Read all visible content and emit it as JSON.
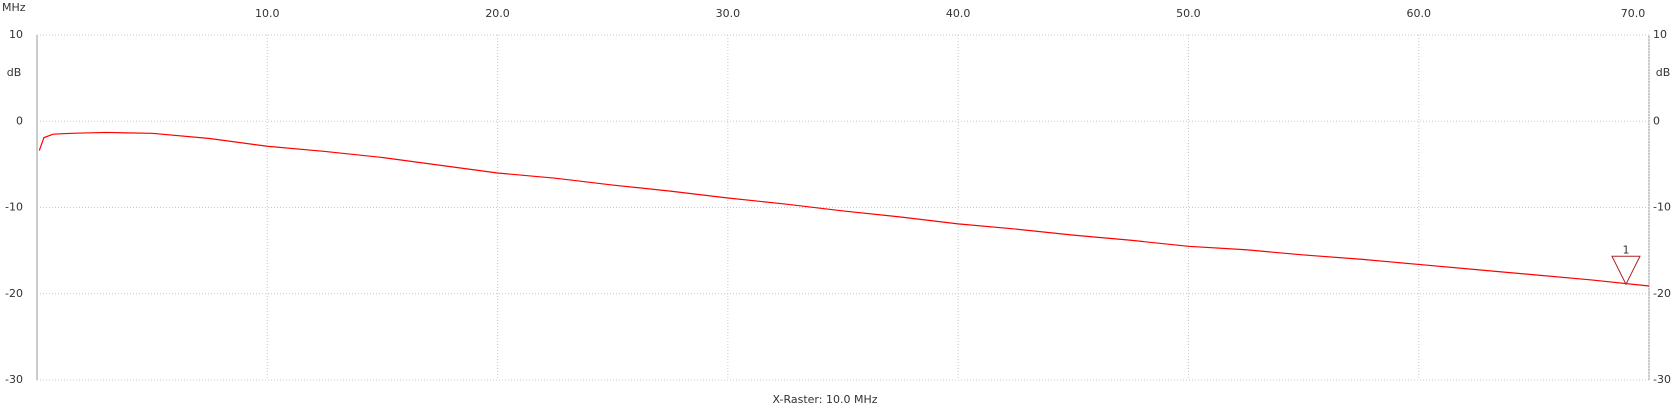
{
  "chart_data": {
    "type": "line",
    "x_label": "MHz",
    "y_label": "dB",
    "annotation": "X-Raster: 10.0 MHz",
    "x": [
      0.1,
      0.3,
      0.7,
      1.5,
      3,
      5,
      7.5,
      10,
      12.5,
      15,
      17.5,
      20,
      22.5,
      25,
      27.5,
      30,
      32.5,
      35,
      37.5,
      40,
      42.5,
      45,
      47.5,
      50,
      52.5,
      55,
      57.5,
      60,
      62.5,
      65,
      67.5,
      70
    ],
    "series": [
      {
        "color": "#ff0000",
        "values": [
          -3.4,
          -1.9,
          -1.5,
          -1.4,
          -1.3,
          -1.4,
          -2.0,
          -2.9,
          -3.5,
          -4.2,
          -5.1,
          -6.0,
          -6.6,
          -7.4,
          -8.1,
          -8.9,
          -9.6,
          -10.4,
          -11.1,
          -11.9,
          -12.5,
          -13.2,
          -13.8,
          -14.5,
          -14.9,
          -15.5,
          -16.0,
          -16.6,
          -17.2,
          -17.8,
          -18.4,
          -19.1
        ]
      }
    ],
    "xlim": [
      0,
      70
    ],
    "xticks": [
      {
        "value": 10,
        "label": "10.0"
      },
      {
        "value": 20,
        "label": "20.0"
      },
      {
        "value": 30,
        "label": "30.0"
      },
      {
        "value": 40,
        "label": "40.0"
      },
      {
        "value": 50,
        "label": "50.0"
      },
      {
        "value": 60,
        "label": "60.0"
      },
      {
        "value": 70,
        "label": "70.0"
      }
    ],
    "ylim": [
      -30,
      10
    ],
    "yticks": [
      -30,
      -20,
      -10,
      0,
      10
    ],
    "grid": true,
    "markers": [
      {
        "label": "1",
        "x": 69.0,
        "y": -18.9,
        "color": "#b22222"
      }
    ]
  }
}
